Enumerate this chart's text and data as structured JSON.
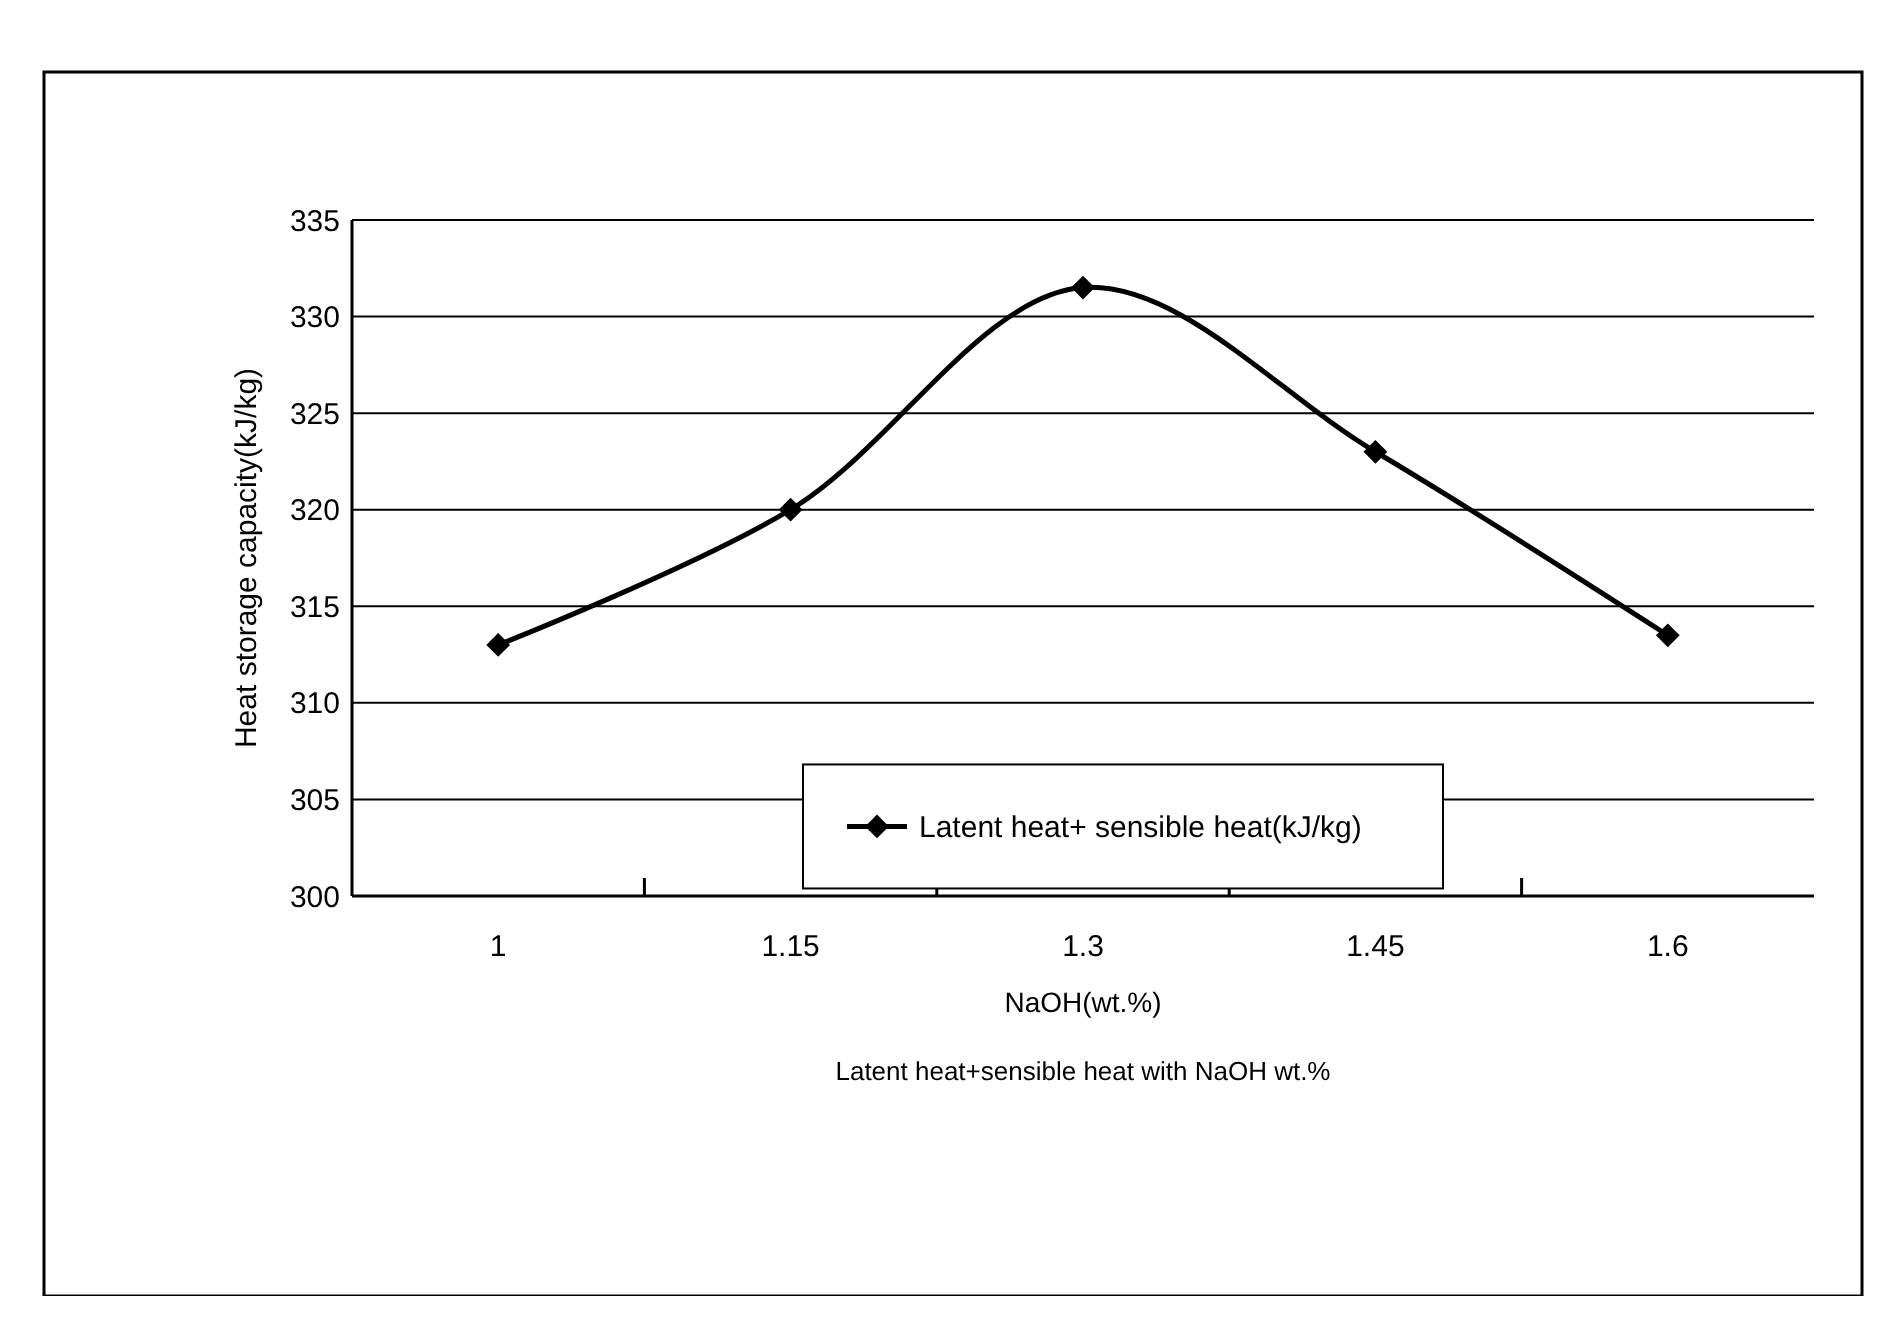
{
  "chart_data": {
    "type": "line",
    "xlabel": "NaOH(wt.%)",
    "ylabel": "Heat storage capacity(kJ/kg)",
    "annotations": [
      "Latent heat+sensible heat with NaOH wt.%"
    ],
    "categories": [
      "1",
      "1.15",
      "1.3",
      "1.45",
      "1.6"
    ],
    "series": [
      {
        "name": "Latent heat+ sensible heat(kJ/kg)",
        "color": "#000000",
        "values": [
          313,
          320,
          331.5,
          323,
          313.5
        ]
      }
    ],
    "ylim": [
      300,
      335
    ],
    "yticks": [
      300,
      305,
      310,
      315,
      320,
      325,
      330,
      335
    ],
    "grid": "y",
    "legend": "bottom",
    "marker": "diamond",
    "line_style": "solid"
  }
}
